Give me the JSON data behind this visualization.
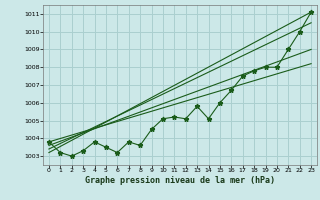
{
  "xlabel": "Graphe pression niveau de la mer (hPa)",
  "background_color": "#cce8e8",
  "grid_color": "#aacfcf",
  "line_color": "#1a5c1a",
  "xlim": [
    -0.5,
    23.5
  ],
  "ylim": [
    1002.5,
    1011.5
  ],
  "yticks": [
    1003,
    1004,
    1005,
    1006,
    1007,
    1008,
    1009,
    1010,
    1011
  ],
  "xticks": [
    0,
    1,
    2,
    3,
    4,
    5,
    6,
    7,
    8,
    9,
    10,
    11,
    12,
    13,
    14,
    15,
    16,
    17,
    18,
    19,
    20,
    21,
    22,
    23
  ],
  "main_data": [
    [
      0,
      1003.8
    ],
    [
      1,
      1003.2
    ],
    [
      2,
      1003.0
    ],
    [
      3,
      1003.3
    ],
    [
      4,
      1003.8
    ],
    [
      5,
      1003.5
    ],
    [
      6,
      1003.2
    ],
    [
      7,
      1003.8
    ],
    [
      8,
      1003.6
    ],
    [
      9,
      1004.5
    ],
    [
      10,
      1005.1
    ],
    [
      11,
      1005.2
    ],
    [
      12,
      1005.1
    ],
    [
      13,
      1005.8
    ],
    [
      14,
      1005.1
    ],
    [
      15,
      1006.0
    ],
    [
      16,
      1006.7
    ],
    [
      17,
      1007.5
    ],
    [
      18,
      1007.8
    ],
    [
      19,
      1008.0
    ],
    [
      20,
      1008.0
    ],
    [
      21,
      1009.0
    ],
    [
      22,
      1010.0
    ],
    [
      23,
      1011.1
    ]
  ],
  "trends": [
    [
      [
        0,
        1003.2
      ],
      [
        23,
        1011.1
      ]
    ],
    [
      [
        0,
        1003.4
      ],
      [
        23,
        1010.5
      ]
    ],
    [
      [
        0,
        1003.8
      ],
      [
        23,
        1008.2
      ]
    ],
    [
      [
        0,
        1003.6
      ],
      [
        23,
        1009.0
      ]
    ]
  ]
}
